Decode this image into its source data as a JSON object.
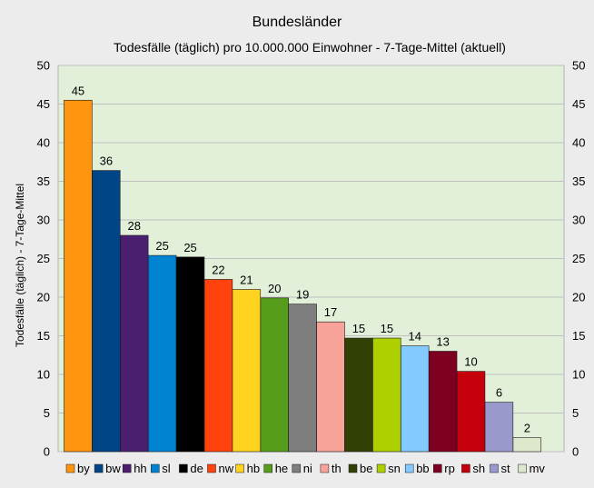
{
  "chart_data": {
    "type": "bar",
    "title": "Bundesländer",
    "subtitle": "Todesfälle (täglich) pro 10.000.000 Einwohner - 7-Tage-Mittel (aktuell)",
    "ylabel": "Todesfälle (täglich) - 7-Tage-Mittel",
    "xlabel": "",
    "ylim": [
      0,
      50
    ],
    "yticks": [
      0,
      5,
      10,
      15,
      20,
      25,
      30,
      35,
      40,
      45,
      50
    ],
    "grid": true,
    "legend_position": "bottom",
    "categories": [
      "by",
      "bw",
      "hh",
      "sl",
      "de",
      "nw",
      "hb",
      "he",
      "ni",
      "th",
      "be",
      "sn",
      "bb",
      "rp",
      "sh",
      "st",
      "mv"
    ],
    "values": [
      45.5,
      36.4,
      28.0,
      25.4,
      25.2,
      22.3,
      21.0,
      19.9,
      19.1,
      16.8,
      14.7,
      14.7,
      13.7,
      13.0,
      10.4,
      6.4,
      1.8
    ],
    "value_labels": [
      "45",
      "36",
      "28",
      "25",
      "25",
      "22",
      "21",
      "20",
      "19",
      "17",
      "15",
      "15",
      "14",
      "13",
      "10",
      "6",
      "2"
    ],
    "colors": [
      "#ff950e",
      "#004586",
      "#4b1f6f",
      "#0084d1",
      "#000000",
      "#ff420e",
      "#ffd320",
      "#579d1c",
      "#7e7e7e",
      "#f7a399",
      "#314004",
      "#aecf00",
      "#83caff",
      "#7e0021",
      "#c5000b",
      "#9999cc",
      "#dde8cb"
    ],
    "plot_background": "#e2efd9",
    "grid_color": "#bfbfbf"
  }
}
